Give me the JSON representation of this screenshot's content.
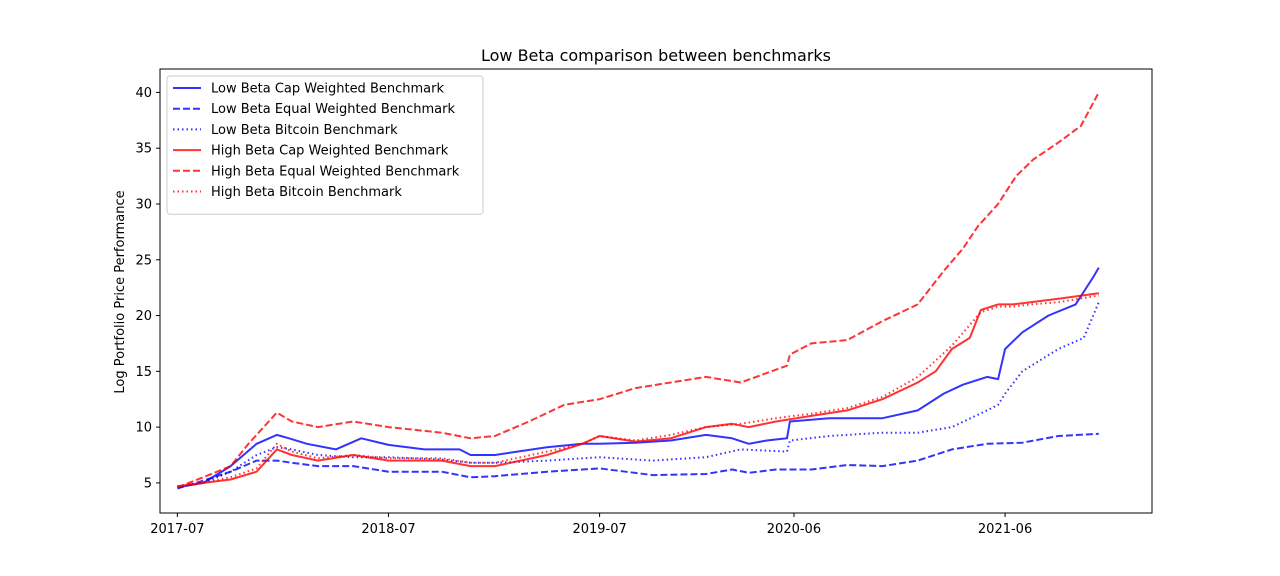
{
  "chart_data": {
    "type": "line",
    "title": "Low Beta comparison between benchmarks",
    "xlabel": "",
    "ylabel": "Log Portfolio Price Performance",
    "x_tick_labels": [
      "2017-07",
      "2018-07",
      "2019-07",
      "2020-06",
      "2021-06"
    ],
    "x_tick_dates": [
      "2017-07-01",
      "2018-07-01",
      "2019-07-01",
      "2020-06-01",
      "2021-06-01"
    ],
    "xlim": [
      "2017-06-01",
      "2022-02-10"
    ],
    "y_ticks": [
      5,
      10,
      15,
      20,
      25,
      30,
      35,
      40
    ],
    "ylim": [
      2.3,
      42.1
    ],
    "grid": false,
    "legend_position": "top-left",
    "series": [
      {
        "name": "Low Beta Cap Weighted Benchmark",
        "color": "#0000ff",
        "style": "solid",
        "x": [
          "2017-07-01",
          "2017-08-15",
          "2017-10-01",
          "2017-11-15",
          "2017-12-20",
          "2018-01-10",
          "2018-02-10",
          "2018-04-01",
          "2018-05-15",
          "2018-07-01",
          "2018-09-01",
          "2018-11-01",
          "2018-11-20",
          "2019-01-01",
          "2019-04-01",
          "2019-06-01",
          "2019-07-01",
          "2019-09-01",
          "2019-11-01",
          "2020-01-01",
          "2020-02-15",
          "2020-03-15",
          "2020-04-15",
          "2020-05-20",
          "2020-05-25",
          "2020-08-01",
          "2020-11-01",
          "2021-01-01",
          "2021-02-15",
          "2021-03-20",
          "2021-05-01",
          "2021-05-20",
          "2021-06-01",
          "2021-07-01",
          "2021-08-15",
          "2021-10-01",
          "2021-11-01",
          "2021-11-10"
        ],
        "y": [
          4.6,
          5.0,
          6.5,
          8.5,
          9.3,
          9.0,
          8.5,
          8.0,
          9.0,
          8.4,
          8.0,
          8.0,
          7.5,
          7.5,
          8.2,
          8.5,
          8.5,
          8.6,
          8.8,
          9.3,
          9.0,
          8.5,
          8.8,
          9.0,
          10.5,
          10.8,
          10.8,
          11.5,
          13.0,
          13.8,
          14.5,
          14.3,
          17.0,
          18.5,
          20.0,
          21.0,
          23.5,
          24.3
        ]
      },
      {
        "name": "Low Beta Equal Weighted Benchmark",
        "color": "#0000ff",
        "style": "dashed",
        "x": [
          "2017-07-01",
          "2017-08-15",
          "2017-10-01",
          "2017-11-15",
          "2017-12-20",
          "2018-01-15",
          "2018-03-01",
          "2018-05-01",
          "2018-07-01",
          "2018-10-01",
          "2018-11-20",
          "2019-01-01",
          "2019-04-01",
          "2019-07-01",
          "2019-10-01",
          "2020-01-01",
          "2020-02-15",
          "2020-03-15",
          "2020-05-01",
          "2020-07-01",
          "2020-09-01",
          "2020-11-01",
          "2021-01-01",
          "2021-03-01",
          "2021-05-01",
          "2021-07-01",
          "2021-09-01",
          "2021-11-10"
        ],
        "y": [
          4.5,
          5.2,
          6.0,
          7.0,
          7.0,
          6.8,
          6.5,
          6.5,
          6.0,
          6.0,
          5.5,
          5.6,
          6.0,
          6.3,
          5.7,
          5.8,
          6.2,
          5.9,
          6.2,
          6.2,
          6.6,
          6.5,
          7.0,
          8.0,
          8.5,
          8.6,
          9.2,
          9.4
        ]
      },
      {
        "name": "Low Beta Bitcoin Benchmark",
        "color": "#0000ff",
        "style": "dotted",
        "x": [
          "2017-07-01",
          "2017-08-15",
          "2017-10-01",
          "2017-11-15",
          "2017-12-20",
          "2018-01-15",
          "2018-03-01",
          "2018-05-01",
          "2018-07-01",
          "2018-10-01",
          "2018-11-20",
          "2019-01-01",
          "2019-04-01",
          "2019-07-01",
          "2019-10-01",
          "2020-01-01",
          "2020-03-01",
          "2020-05-20",
          "2020-05-25",
          "2020-08-01",
          "2020-11-01",
          "2021-01-01",
          "2021-03-01",
          "2021-05-01",
          "2021-05-20",
          "2021-06-01",
          "2021-07-01",
          "2021-09-01",
          "2021-10-15",
          "2021-11-10"
        ],
        "y": [
          4.6,
          5.0,
          6.0,
          7.5,
          8.2,
          8.0,
          7.5,
          7.3,
          7.3,
          7.1,
          6.8,
          6.8,
          7.0,
          7.3,
          7.0,
          7.3,
          8.0,
          7.8,
          8.8,
          9.2,
          9.5,
          9.5,
          10.0,
          11.5,
          12.0,
          13.0,
          15.0,
          17.0,
          18.0,
          21.2
        ]
      },
      {
        "name": "High Beta Cap Weighted Benchmark",
        "color": "#ff0000",
        "style": "solid",
        "x": [
          "2017-07-01",
          "2017-08-15",
          "2017-10-01",
          "2017-11-15",
          "2017-12-20",
          "2018-01-15",
          "2018-03-01",
          "2018-05-01",
          "2018-07-01",
          "2018-10-01",
          "2018-11-20",
          "2019-01-01",
          "2019-04-01",
          "2019-06-01",
          "2019-07-01",
          "2019-09-01",
          "2019-11-01",
          "2020-01-01",
          "2020-02-15",
          "2020-03-15",
          "2020-05-01",
          "2020-07-01",
          "2020-09-01",
          "2020-11-01",
          "2021-01-01",
          "2021-02-01",
          "2021-03-01",
          "2021-04-01",
          "2021-04-20",
          "2021-05-20",
          "2021-06-15",
          "2021-07-15",
          "2021-09-01",
          "2021-11-10"
        ],
        "y": [
          4.7,
          5.0,
          5.3,
          6.0,
          8.0,
          7.5,
          7.0,
          7.5,
          7.0,
          7.0,
          6.5,
          6.5,
          7.5,
          8.5,
          9.2,
          8.7,
          9.0,
          10.0,
          10.3,
          10.0,
          10.5,
          11.0,
          11.5,
          12.5,
          14.0,
          15.0,
          17.0,
          18.0,
          20.5,
          21.0,
          21.0,
          21.2,
          21.5,
          22.0
        ]
      },
      {
        "name": "High Beta Equal Weighted Benchmark",
        "color": "#ff0000",
        "style": "dashed",
        "x": [
          "2017-07-01",
          "2017-08-15",
          "2017-10-01",
          "2017-11-01",
          "2017-12-20",
          "2018-01-15",
          "2018-03-01",
          "2018-05-01",
          "2018-07-01",
          "2018-10-01",
          "2018-11-20",
          "2019-01-01",
          "2019-03-01",
          "2019-05-01",
          "2019-07-01",
          "2019-09-01",
          "2019-11-01",
          "2020-01-01",
          "2020-03-01",
          "2020-05-20",
          "2020-05-25",
          "2020-07-01",
          "2020-09-01",
          "2020-11-01",
          "2021-01-01",
          "2021-02-15",
          "2021-03-20",
          "2021-04-15",
          "2021-05-20",
          "2021-06-20",
          "2021-07-20",
          "2021-09-01",
          "2021-10-10",
          "2021-11-10"
        ],
        "y": [
          4.6,
          5.5,
          6.5,
          8.5,
          11.3,
          10.5,
          10.0,
          10.5,
          10.0,
          9.5,
          9.0,
          9.2,
          10.5,
          12.0,
          12.5,
          13.5,
          14.0,
          14.5,
          14.0,
          15.5,
          16.5,
          17.5,
          17.8,
          19.5,
          21.0,
          24.0,
          26.0,
          28.0,
          30.0,
          32.5,
          34.0,
          35.5,
          37.0,
          40.0
        ]
      },
      {
        "name": "High Beta Bitcoin Benchmark",
        "color": "#ff0000",
        "style": "dotted",
        "x": [
          "2017-07-01",
          "2017-08-15",
          "2017-10-01",
          "2017-11-15",
          "2017-12-20",
          "2018-01-15",
          "2018-03-01",
          "2018-05-01",
          "2018-07-01",
          "2018-10-01",
          "2018-11-20",
          "2019-01-01",
          "2019-04-01",
          "2019-06-01",
          "2019-07-01",
          "2019-09-01",
          "2019-11-01",
          "2020-01-01",
          "2020-03-01",
          "2020-05-01",
          "2020-07-01",
          "2020-09-01",
          "2020-11-01",
          "2021-01-01",
          "2021-03-01",
          "2021-04-20",
          "2021-05-20",
          "2021-06-15",
          "2021-07-15",
          "2021-09-01",
          "2021-11-10"
        ],
        "y": [
          4.7,
          5.0,
          5.5,
          6.3,
          8.5,
          7.8,
          7.2,
          7.5,
          7.2,
          7.2,
          6.8,
          6.8,
          7.8,
          8.5,
          9.2,
          8.8,
          9.3,
          10.0,
          10.3,
          10.8,
          11.2,
          11.7,
          12.7,
          14.5,
          17.3,
          20.3,
          20.8,
          20.8,
          21.0,
          21.2,
          21.8
        ]
      }
    ]
  }
}
